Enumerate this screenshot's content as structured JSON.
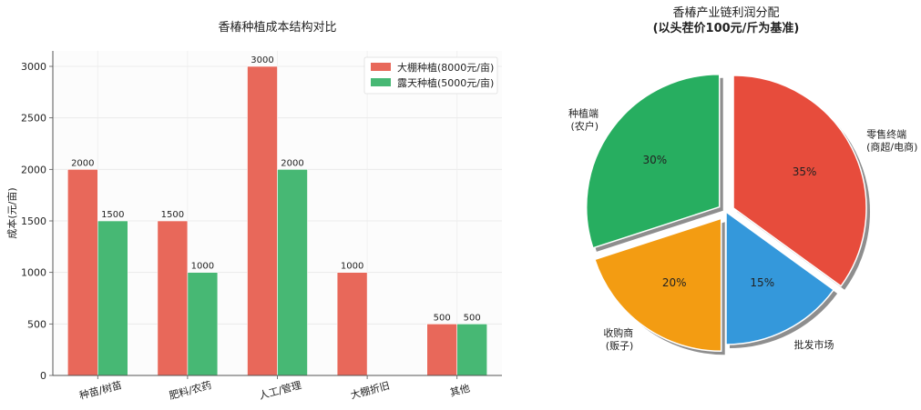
{
  "chart_data": [
    {
      "type": "bar",
      "title": "香椿种植成本结构对比",
      "xlabel": "",
      "ylabel": "成本(元/亩)",
      "categories": [
        "种苗/树苗",
        "肥料/农药",
        "人工/管理",
        "大棚折旧",
        "其他"
      ],
      "series": [
        {
          "name": "大棚种植(8000元/亩)",
          "values": [
            2000,
            1500,
            3000,
            1000,
            500
          ],
          "color": "#e8685a"
        },
        {
          "name": "露天种植(5000元/亩)",
          "values": [
            1500,
            1000,
            2000,
            0,
            500
          ],
          "color": "#47b874"
        }
      ],
      "value_labels": [
        [
          "2000",
          "1500",
          "3000",
          "1000",
          "500"
        ],
        [
          "1500",
          "1000",
          "2000",
          "",
          "500"
        ]
      ],
      "yticks": [
        "0",
        "500",
        "1000",
        "1500",
        "2000",
        "2500",
        "3000"
      ],
      "ylim": [
        0,
        3150
      ],
      "grid": true,
      "legend": "top-right"
    },
    {
      "type": "pie",
      "title": "香椿产业链利润分配",
      "subtitle": "(以头茬价100元/斤为基准)",
      "slices": [
        {
          "label": "零售终端\n(商超/电商)",
          "value": 35,
          "pct": "35%",
          "color": "#e74c3c",
          "explode": true
        },
        {
          "label": "批发市场",
          "value": 15,
          "pct": "15%",
          "color": "#3498db",
          "explode": false
        },
        {
          "label": "收购商\n(贩子)",
          "value": 20,
          "pct": "20%",
          "color": "#f39c12",
          "explode": true
        },
        {
          "label": "种植端\n(农户)",
          "value": 30,
          "pct": "30%",
          "color": "#27ae60",
          "explode": true
        }
      ],
      "startangle": 90,
      "direction": "clockwise",
      "shadow": true
    }
  ]
}
